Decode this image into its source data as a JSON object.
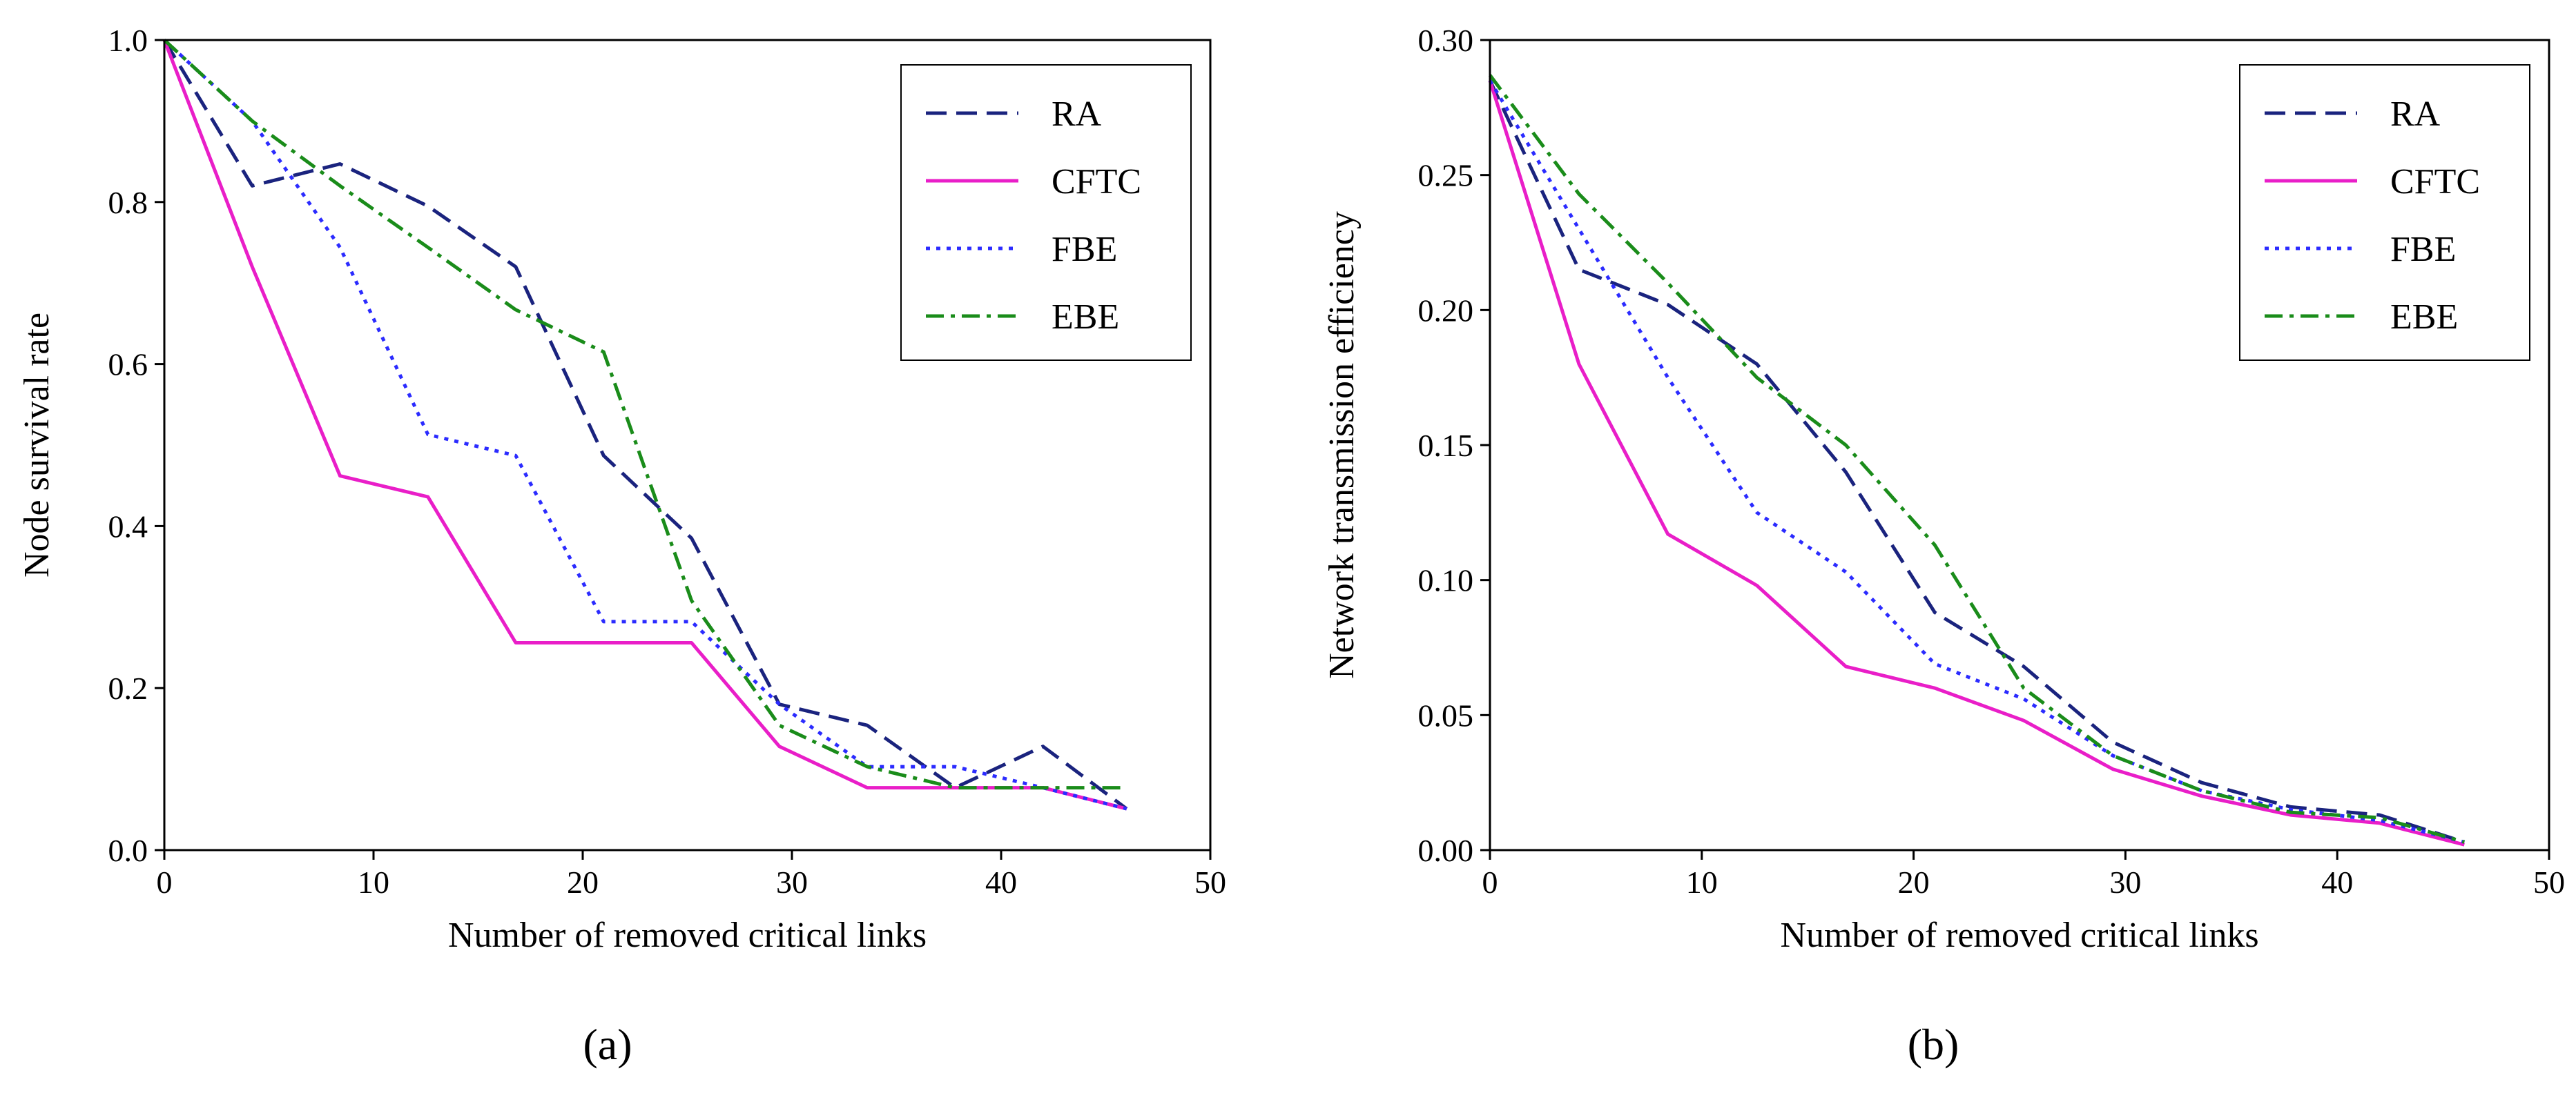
{
  "figure": {
    "panel_labels": [
      "(a)",
      "(b)"
    ]
  },
  "chart_data": [
    {
      "type": "line",
      "panel": "(a)",
      "xlabel": "Number of removed critical links",
      "ylabel": "Node survival rate",
      "xlim": [
        0,
        50
      ],
      "ylim": [
        0,
        1.0
      ],
      "xticks": [
        0,
        10,
        20,
        30,
        40,
        50
      ],
      "xtick_labels": [
        "0",
        "10",
        "20",
        "30",
        "40",
        "50"
      ],
      "yticks": [
        0,
        0.2,
        0.4,
        0.6,
        0.8,
        1.0
      ],
      "ytick_labels": [
        "0.0",
        "0.2",
        "0.4",
        "0.6",
        "0.8",
        "1.0"
      ],
      "legend_position": "top-right",
      "x": [
        0,
        4.2,
        8.4,
        12.6,
        16.8,
        21,
        25.2,
        29.4,
        33.6,
        37.8,
        42,
        46
      ],
      "series": [
        {
          "name": "RA",
          "color": "#1a237e",
          "dash": "dashed",
          "values": [
            1.0,
            0.82,
            0.847,
            0.795,
            0.72,
            0.487,
            0.385,
            0.18,
            0.154,
            0.077,
            0.128,
            0.051
          ]
        },
        {
          "name": "CFTC",
          "color": "#e91ec8",
          "dash": "solid",
          "values": [
            1.0,
            0.72,
            0.462,
            0.436,
            0.256,
            0.256,
            0.256,
            0.128,
            0.077,
            0.077,
            0.077,
            0.051
          ]
        },
        {
          "name": "FBE",
          "color": "#2b2bff",
          "dash": "dotted",
          "values": [
            1.0,
            0.9,
            0.744,
            0.513,
            0.487,
            0.282,
            0.282,
            0.18,
            0.103,
            0.103,
            0.077,
            0.051
          ]
        },
        {
          "name": "EBE",
          "color": "#1a8c1a",
          "dash": "dashdot",
          "values": [
            1.0,
            0.9,
            0.82,
            0.744,
            0.667,
            0.615,
            0.308,
            0.154,
            0.103,
            0.077,
            0.077,
            0.077
          ]
        }
      ]
    },
    {
      "type": "line",
      "panel": "(b)",
      "xlabel": "Number of removed critical links",
      "ylabel": "Network transmission efficiency",
      "xlim": [
        0,
        50
      ],
      "ylim": [
        0,
        0.3
      ],
      "xticks": [
        0,
        10,
        20,
        30,
        40,
        50
      ],
      "xtick_labels": [
        "0",
        "10",
        "20",
        "30",
        "40",
        "50"
      ],
      "yticks": [
        0,
        0.05,
        0.1,
        0.15,
        0.2,
        0.25,
        0.3
      ],
      "ytick_labels": [
        "0.00",
        "0.05",
        "0.10",
        "0.15",
        "0.20",
        "0.25",
        "0.30"
      ],
      "legend_position": "top-right",
      "x": [
        0,
        4.2,
        8.4,
        12.6,
        16.8,
        21,
        25.2,
        29.4,
        33.6,
        37.8,
        42,
        46
      ],
      "series": [
        {
          "name": "RA",
          "color": "#1a237e",
          "dash": "dashed",
          "values": [
            0.285,
            0.215,
            0.202,
            0.18,
            0.14,
            0.088,
            0.068,
            0.04,
            0.025,
            0.016,
            0.013,
            0.003
          ]
        },
        {
          "name": "CFTC",
          "color": "#e91ec8",
          "dash": "solid",
          "values": [
            0.285,
            0.18,
            0.117,
            0.098,
            0.068,
            0.06,
            0.048,
            0.03,
            0.02,
            0.013,
            0.01,
            0.002
          ]
        },
        {
          "name": "FBE",
          "color": "#2b2bff",
          "dash": "dotted",
          "values": [
            0.285,
            0.23,
            0.175,
            0.125,
            0.103,
            0.069,
            0.056,
            0.035,
            0.022,
            0.015,
            0.011,
            0.003
          ]
        },
        {
          "name": "EBE",
          "color": "#1a8c1a",
          "dash": "dashdot",
          "values": [
            0.287,
            0.243,
            0.21,
            0.175,
            0.15,
            0.113,
            0.06,
            0.035,
            0.022,
            0.014,
            0.012,
            0.003
          ]
        }
      ]
    }
  ]
}
